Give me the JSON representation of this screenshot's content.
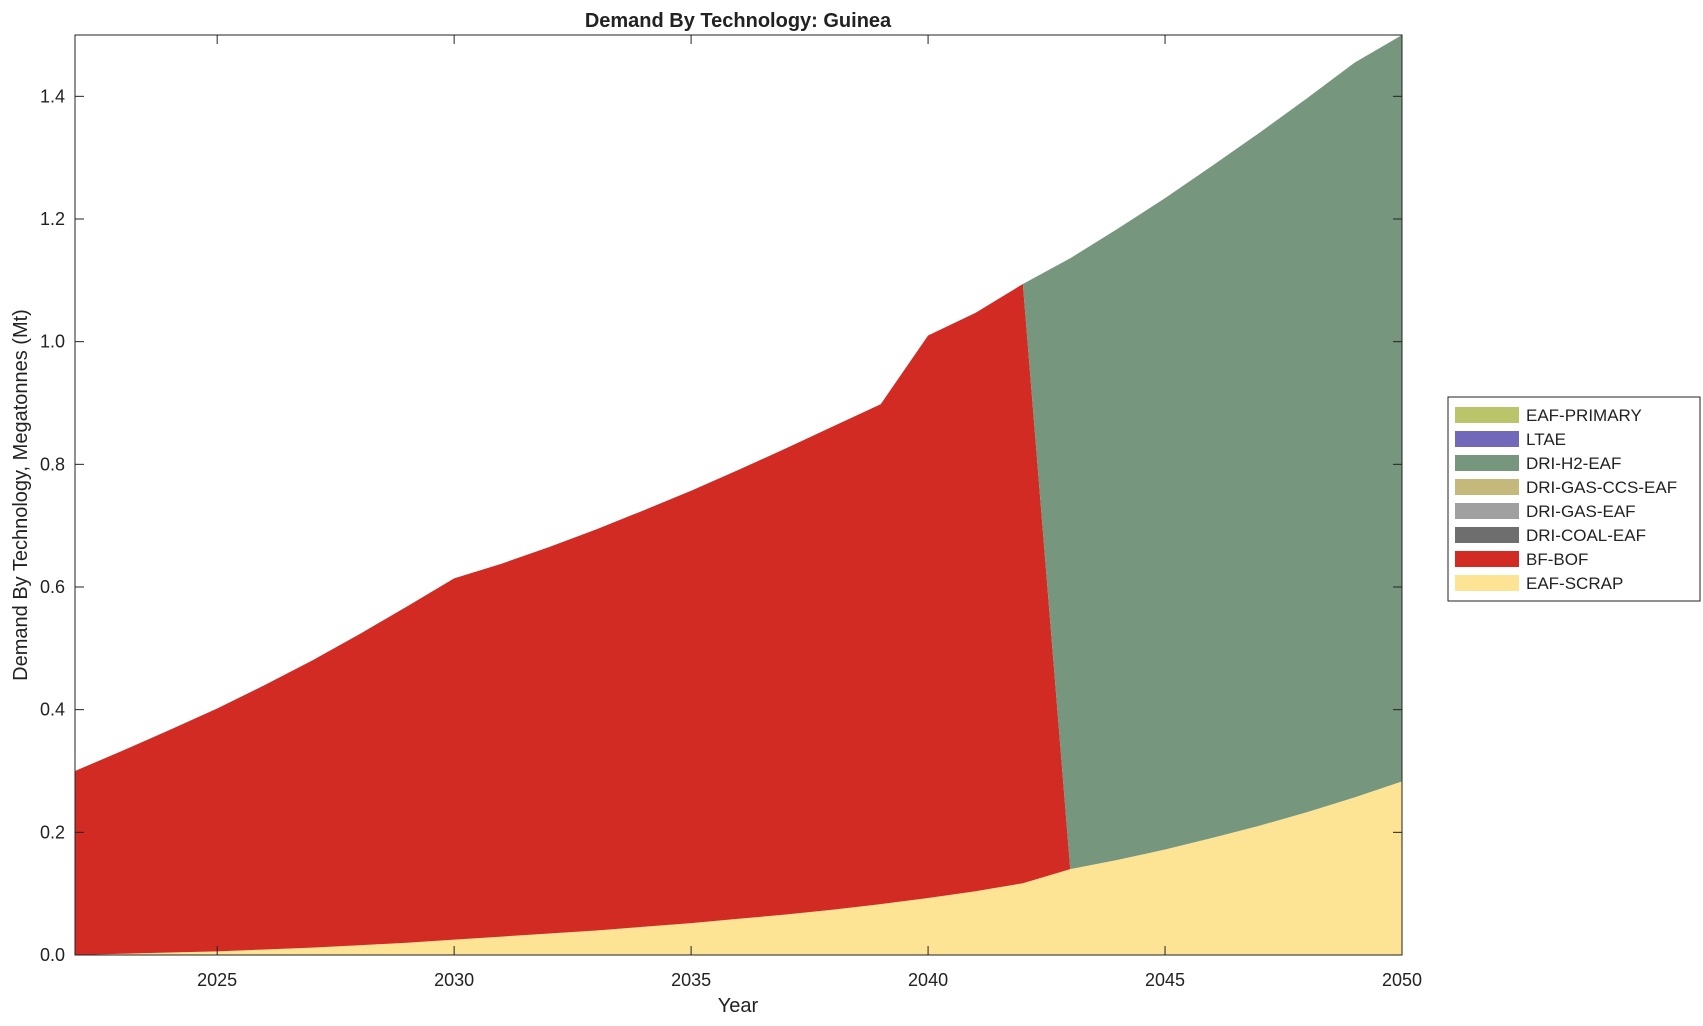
{
  "chart_data": {
    "type": "area",
    "title": "Demand By Technology: Guinea",
    "xlabel": "Year",
    "ylabel": "Demand By Technology, Megatonnes (Mt)",
    "xlim": [
      2022,
      2050
    ],
    "ylim": [
      0,
      1.5
    ],
    "xticks": [
      2025,
      2030,
      2035,
      2040,
      2045,
      2050
    ],
    "xtick_labels": [
      "2025",
      "2030",
      "2035",
      "2040",
      "2045",
      "2050"
    ],
    "yticks": [
      0,
      0.2,
      0.4,
      0.6,
      0.8,
      1.0,
      1.2,
      1.4
    ],
    "ytick_labels": [
      "0.0",
      "0.2",
      "0.4",
      "0.6",
      "0.8",
      "1.0",
      "1.2",
      "1.4"
    ],
    "grid": false,
    "legend_position": "right",
    "x": [
      2022,
      2023,
      2024,
      2025,
      2026,
      2027,
      2028,
      2029,
      2030,
      2031,
      2032,
      2033,
      2034,
      2035,
      2036,
      2037,
      2038,
      2039,
      2040,
      2041,
      2042,
      2043,
      2044,
      2045,
      2046,
      2047,
      2048,
      2049,
      2050
    ],
    "series": [
      {
        "name": "EAF-SCRAP",
        "color": "#fde394",
        "values": [
          0.0,
          0.002,
          0.004,
          0.006,
          0.009,
          0.012,
          0.016,
          0.02,
          0.025,
          0.03,
          0.035,
          0.04,
          0.046,
          0.052,
          0.059,
          0.066,
          0.074,
          0.083,
          0.093,
          0.104,
          0.117,
          0.14,
          0.155,
          0.172,
          0.191,
          0.211,
          0.233,
          0.257,
          0.283
        ]
      },
      {
        "name": "BF-BOF",
        "color": "#d12b24",
        "values": [
          0.3,
          0.331,
          0.363,
          0.396,
          0.431,
          0.468,
          0.507,
          0.548,
          0.589,
          0.608,
          0.63,
          0.654,
          0.679,
          0.705,
          0.732,
          0.76,
          0.788,
          0.815,
          0.917,
          0.943,
          0.977,
          0,
          0,
          0,
          0,
          0,
          0,
          0,
          0
        ]
      },
      {
        "name": "DRI-COAL-EAF",
        "color": "#6e6e6e",
        "values": [
          0,
          0,
          0,
          0,
          0,
          0,
          0,
          0,
          0,
          0,
          0,
          0,
          0,
          0,
          0,
          0,
          0,
          0,
          0,
          0,
          0,
          0,
          0,
          0,
          0,
          0,
          0,
          0,
          0
        ]
      },
      {
        "name": "DRI-GAS-EAF",
        "color": "#a0a0a0",
        "values": [
          0,
          0,
          0,
          0,
          0,
          0,
          0,
          0,
          0,
          0,
          0,
          0,
          0,
          0,
          0,
          0,
          0,
          0,
          0,
          0,
          0,
          0,
          0,
          0,
          0,
          0,
          0,
          0,
          0
        ]
      },
      {
        "name": "DRI-GAS-CCS-EAF",
        "color": "#c4b87a",
        "values": [
          0,
          0,
          0,
          0,
          0,
          0,
          0,
          0,
          0,
          0,
          0,
          0,
          0,
          0,
          0,
          0,
          0,
          0,
          0,
          0,
          0,
          0,
          0,
          0,
          0,
          0,
          0,
          0,
          0
        ]
      },
      {
        "name": "DRI-H2-EAF",
        "color": "#77967e",
        "values": [
          0,
          0,
          0,
          0,
          0,
          0,
          0,
          0,
          0,
          0,
          0,
          0,
          0,
          0,
          0,
          0,
          0,
          0,
          0,
          0,
          0,
          0.996,
          1.029,
          1.062,
          1.096,
          1.13,
          1.164,
          1.198,
          1.217
        ]
      },
      {
        "name": "LTAE",
        "color": "#7168ba",
        "values": [
          0,
          0,
          0,
          0,
          0,
          0,
          0,
          0,
          0,
          0,
          0,
          0,
          0,
          0,
          0,
          0,
          0,
          0,
          0,
          0,
          0,
          0,
          0,
          0,
          0,
          0,
          0,
          0,
          0
        ]
      },
      {
        "name": "EAF-PRIMARY",
        "color": "#bac46a",
        "values": [
          0,
          0,
          0,
          0,
          0,
          0,
          0,
          0,
          0,
          0,
          0,
          0,
          0,
          0,
          0,
          0,
          0,
          0,
          0,
          0,
          0,
          0,
          0,
          0,
          0,
          0,
          0,
          0,
          0
        ]
      }
    ],
    "legend_order": [
      "EAF-PRIMARY",
      "LTAE",
      "DRI-H2-EAF",
      "DRI-GAS-CCS-EAF",
      "DRI-GAS-EAF",
      "DRI-COAL-EAF",
      "BF-BOF",
      "EAF-SCRAP"
    ]
  }
}
